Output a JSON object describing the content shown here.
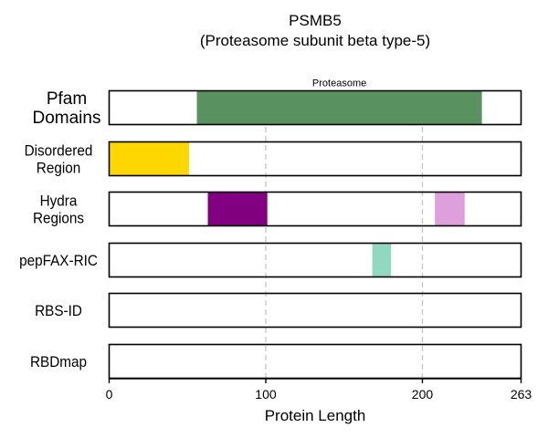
{
  "chart_data": {
    "type": "bar",
    "title": "PSMB5",
    "subtitle": "(Proteasome subunit beta type-5)",
    "xlabel": "Protein Length",
    "xlim": [
      0,
      263
    ],
    "xticks": [
      0,
      100,
      200,
      263
    ],
    "gridlines_at": [
      100,
      200
    ],
    "rows": [
      {
        "label_lines": [
          "Pfam",
          "Domains"
        ],
        "segments": [
          {
            "start": 56,
            "end": 238,
            "color": "#5a9160",
            "label": "Proteasome"
          }
        ]
      },
      {
        "label_lines": [
          "Disordered",
          "Region"
        ],
        "segments": [
          {
            "start": 0,
            "end": 51,
            "color": "#ffd700"
          }
        ]
      },
      {
        "label_lines": [
          "Hydra",
          "Regions"
        ],
        "segments": [
          {
            "start": 63,
            "end": 101,
            "color": "#800080"
          },
          {
            "start": 208,
            "end": 227,
            "color": "#dda0dd"
          }
        ]
      },
      {
        "label_lines": [
          "pepFAX-RIC"
        ],
        "segments": [
          {
            "start": 168,
            "end": 180,
            "color": "#90d8c0"
          }
        ]
      },
      {
        "label_lines": [
          "RBS-ID"
        ],
        "segments": []
      },
      {
        "label_lines": [
          "RBDmap"
        ],
        "segments": []
      }
    ]
  }
}
